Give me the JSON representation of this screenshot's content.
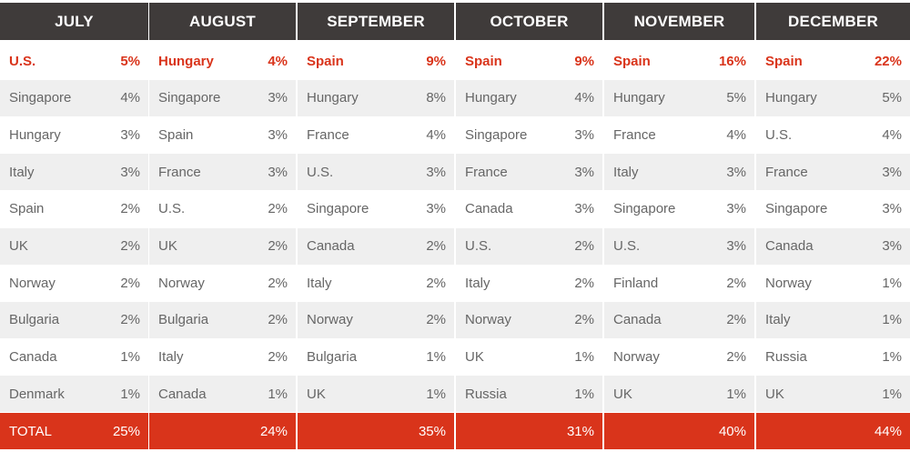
{
  "chart_data": {
    "type": "table",
    "total_label": "TOTAL",
    "columns": [
      {
        "month": "JULY",
        "rows": [
          {
            "country": "U.S.",
            "value": "5%"
          },
          {
            "country": "Singapore",
            "value": "4%"
          },
          {
            "country": "Hungary",
            "value": "3%"
          },
          {
            "country": "Italy",
            "value": "3%"
          },
          {
            "country": "Spain",
            "value": "2%"
          },
          {
            "country": "UK",
            "value": "2%"
          },
          {
            "country": "Norway",
            "value": "2%"
          },
          {
            "country": "Bulgaria",
            "value": "2%"
          },
          {
            "country": "Canada",
            "value": "1%"
          },
          {
            "country": "Denmark",
            "value": "1%"
          }
        ],
        "total": "25%"
      },
      {
        "month": "AUGUST",
        "rows": [
          {
            "country": "Hungary",
            "value": "4%"
          },
          {
            "country": "Singapore",
            "value": "3%"
          },
          {
            "country": "Spain",
            "value": "3%"
          },
          {
            "country": "France",
            "value": "3%"
          },
          {
            "country": "U.S.",
            "value": "2%"
          },
          {
            "country": "UK",
            "value": "2%"
          },
          {
            "country": "Norway",
            "value": "2%"
          },
          {
            "country": "Bulgaria",
            "value": "2%"
          },
          {
            "country": "Italy",
            "value": "2%"
          },
          {
            "country": "Canada",
            "value": "1%"
          }
        ],
        "total": "24%"
      },
      {
        "month": "SEPTEMBER",
        "rows": [
          {
            "country": "Spain",
            "value": "9%"
          },
          {
            "country": "Hungary",
            "value": "8%"
          },
          {
            "country": "France",
            "value": "4%"
          },
          {
            "country": "U.S.",
            "value": "3%"
          },
          {
            "country": "Singapore",
            "value": "3%"
          },
          {
            "country": "Canada",
            "value": "2%"
          },
          {
            "country": "Italy",
            "value": "2%"
          },
          {
            "country": "Norway",
            "value": "2%"
          },
          {
            "country": "Bulgaria",
            "value": "1%"
          },
          {
            "country": "UK",
            "value": "1%"
          }
        ],
        "total": "35%"
      },
      {
        "month": "OCTOBER",
        "rows": [
          {
            "country": "Spain",
            "value": "9%"
          },
          {
            "country": "Hungary",
            "value": "4%"
          },
          {
            "country": "Singapore",
            "value": "3%"
          },
          {
            "country": "France",
            "value": "3%"
          },
          {
            "country": "Canada",
            "value": "3%"
          },
          {
            "country": "U.S.",
            "value": "2%"
          },
          {
            "country": "Italy",
            "value": "2%"
          },
          {
            "country": "Norway",
            "value": "2%"
          },
          {
            "country": "UK",
            "value": "1%"
          },
          {
            "country": "Russia",
            "value": "1%"
          }
        ],
        "total": "31%"
      },
      {
        "month": "NOVEMBER",
        "rows": [
          {
            "country": "Spain",
            "value": "16%"
          },
          {
            "country": "Hungary",
            "value": "5%"
          },
          {
            "country": "France",
            "value": "4%"
          },
          {
            "country": "Italy",
            "value": "3%"
          },
          {
            "country": "Singapore",
            "value": "3%"
          },
          {
            "country": "U.S.",
            "value": "3%"
          },
          {
            "country": "Finland",
            "value": "2%"
          },
          {
            "country": "Canada",
            "value": "2%"
          },
          {
            "country": "Norway",
            "value": "2%"
          },
          {
            "country": "UK",
            "value": "1%"
          }
        ],
        "total": "40%"
      },
      {
        "month": "DECEMBER",
        "rows": [
          {
            "country": "Spain",
            "value": "22%"
          },
          {
            "country": "Hungary",
            "value": "5%"
          },
          {
            "country": "U.S.",
            "value": "4%"
          },
          {
            "country": "France",
            "value": "3%"
          },
          {
            "country": "Singapore",
            "value": "3%"
          },
          {
            "country": "Canada",
            "value": "3%"
          },
          {
            "country": "Norway",
            "value": "1%"
          },
          {
            "country": "Italy",
            "value": "1%"
          },
          {
            "country": "Russia",
            "value": "1%"
          },
          {
            "country": "UK",
            "value": "1%"
          }
        ],
        "total": "44%"
      }
    ]
  },
  "colors": {
    "header_bg": "#3f3b3a",
    "accent_red": "#d9341b",
    "row_alt_bg": "#efefef",
    "text_gray": "#666666"
  }
}
